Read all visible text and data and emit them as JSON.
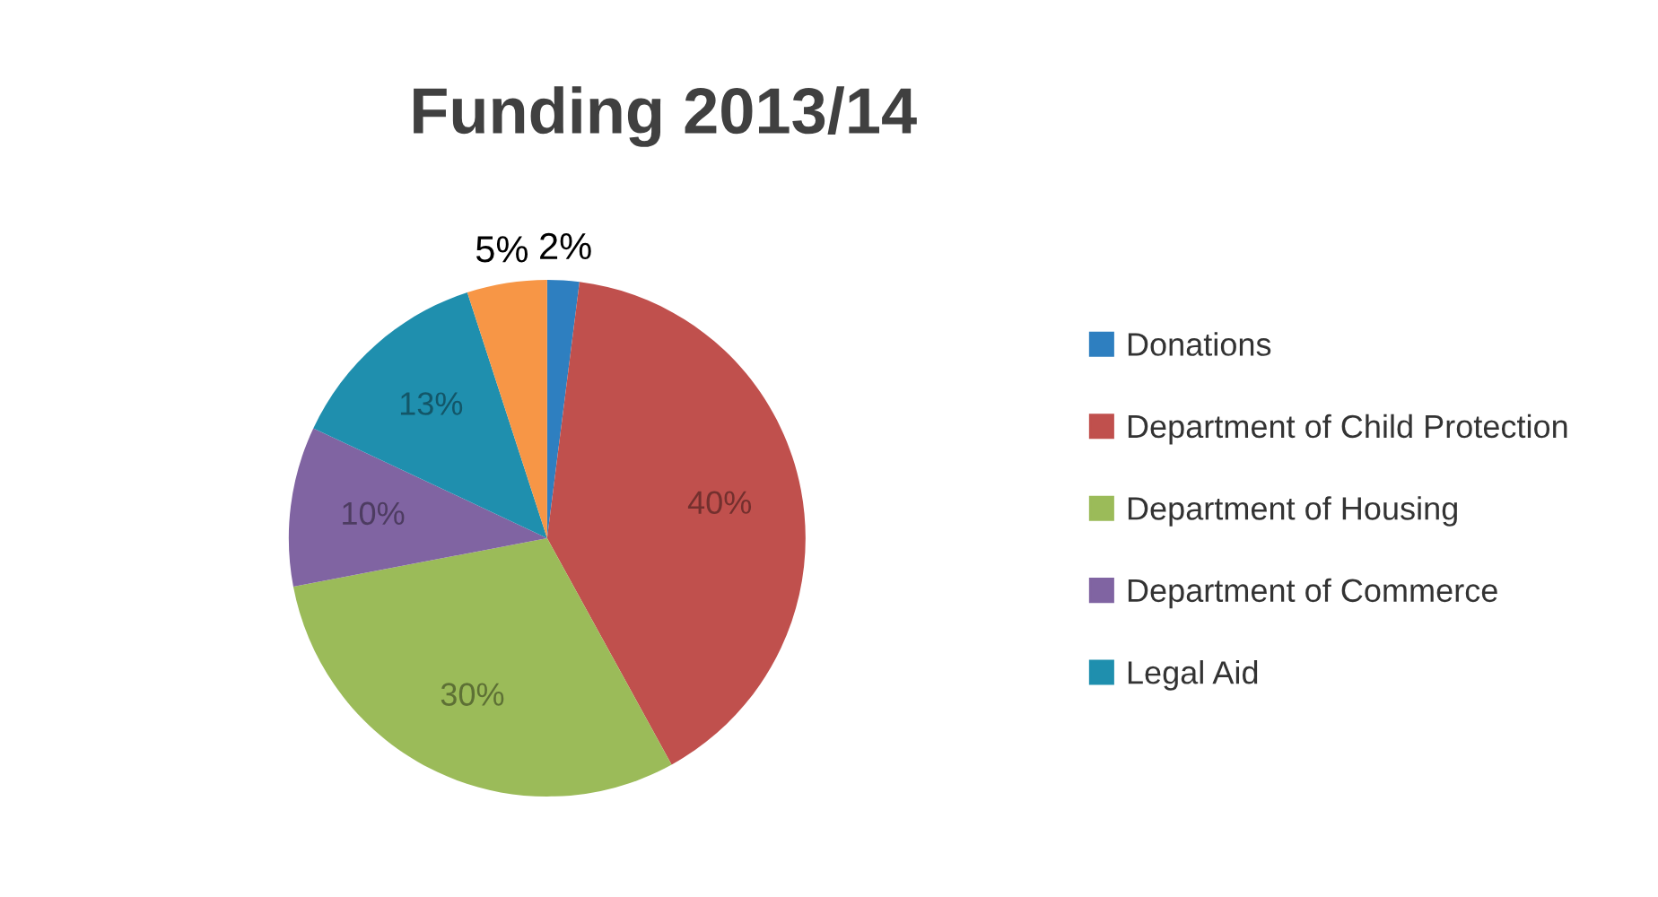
{
  "chart_data": {
    "type": "pie",
    "title": "Funding 2013/14",
    "categories": [
      "Donations",
      "Department of Child Protection",
      "Department of Housing",
      "Department of Commerce",
      "Legal Aid",
      null
    ],
    "values": [
      2,
      40,
      30,
      10,
      13,
      5
    ],
    "colors": [
      "#2e7fc0",
      "#c0504d",
      "#9bbb59",
      "#8064a2",
      "#1f8fae",
      "#f79646"
    ],
    "value_labels": [
      "2%",
      "40%",
      "30%",
      "10%",
      "13%",
      "5%"
    ],
    "legend": "right"
  }
}
